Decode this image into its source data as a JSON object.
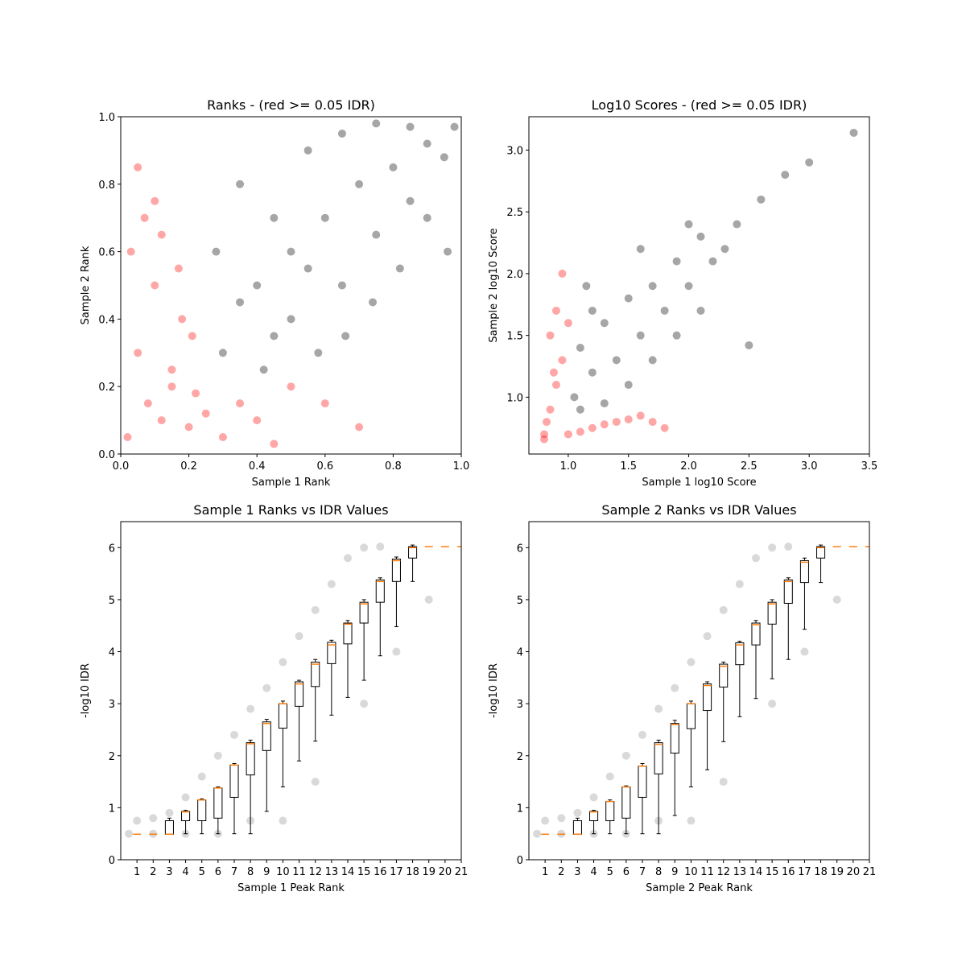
{
  "chart_data": [
    {
      "type": "scatter",
      "title": "Ranks - (red >= 0.05 IDR)",
      "x_label": "Sample 1 Rank",
      "y_label": "Sample 2 Rank",
      "xlim": [
        0,
        1
      ],
      "ylim": [
        0,
        1
      ],
      "xticks": [
        {
          "value": 0,
          "label": "0.0"
        },
        {
          "value": 0.2,
          "label": "0.2"
        },
        {
          "value": 0.4,
          "label": "0.4"
        },
        {
          "value": 0.6,
          "label": "0.6"
        },
        {
          "value": 0.8,
          "label": "0.8"
        },
        {
          "value": 1,
          "label": "1.0"
        }
      ],
      "yticks": [
        {
          "value": 0,
          "label": "0.0"
        },
        {
          "value": 0.2,
          "label": "0.2"
        },
        {
          "value": 0.4,
          "label": "0.4"
        },
        {
          "value": 0.6,
          "label": "0.6"
        },
        {
          "value": 0.8,
          "label": "0.8"
        },
        {
          "value": 1,
          "label": "1.0"
        }
      ],
      "series": [
        {
          "color": "#000000",
          "x": [
            0.3,
            0.35,
            0.4,
            0.45,
            0.5,
            0.55,
            0.6,
            0.65,
            0.7,
            0.75,
            0.8,
            0.85,
            0.9,
            0.95,
            0.98,
            0.28,
            0.35,
            0.42,
            0.5,
            0.58,
            0.66,
            0.74,
            0.82,
            0.9,
            0.96,
            0.45,
            0.55,
            0.65,
            0.75,
            0.85
          ],
          "y": [
            0.3,
            0.45,
            0.5,
            0.35,
            0.6,
            0.55,
            0.7,
            0.5,
            0.8,
            0.65,
            0.85,
            0.75,
            0.92,
            0.88,
            0.97,
            0.6,
            0.8,
            0.25,
            0.4,
            0.3,
            0.35,
            0.45,
            0.55,
            0.7,
            0.6,
            0.7,
            0.9,
            0.95,
            0.98,
            0.97
          ]
        },
        {
          "color": "#ff0000",
          "x": [
            0.02,
            0.05,
            0.08,
            0.1,
            0.12,
            0.15,
            0.18,
            0.2,
            0.22,
            0.25,
            0.3,
            0.35,
            0.4,
            0.45,
            0.5,
            0.03,
            0.07,
            0.12,
            0.17,
            0.21,
            0.6,
            0.7,
            0.05,
            0.1,
            0.15
          ],
          "y": [
            0.05,
            0.3,
            0.15,
            0.5,
            0.1,
            0.25,
            0.4,
            0.08,
            0.18,
            0.12,
            0.05,
            0.15,
            0.1,
            0.03,
            0.2,
            0.6,
            0.7,
            0.65,
            0.55,
            0.35,
            0.15,
            0.08,
            0.85,
            0.75,
            0.2
          ]
        }
      ]
    },
    {
      "type": "scatter",
      "title": "Log10 Scores - (red >= 0.05 IDR)",
      "x_label": "Sample 1 log10 Score",
      "y_label": "Sample 2 log10 Score",
      "xlim": [
        0.673,
        3.5
      ],
      "ylim": [
        0.54,
        3.27
      ],
      "xticks": [
        {
          "value": 1,
          "label": "1.0"
        },
        {
          "value": 1.5,
          "label": "1.5"
        },
        {
          "value": 2,
          "label": "2.0"
        },
        {
          "value": 2.5,
          "label": "2.5"
        },
        {
          "value": 3,
          "label": "3.0"
        },
        {
          "value": 3.5,
          "label": "3.5"
        }
      ],
      "yticks": [
        {
          "value": 1,
          "label": "1.0"
        },
        {
          "value": 1.5,
          "label": "1.5"
        },
        {
          "value": 2,
          "label": "2.0"
        },
        {
          "value": 2.5,
          "label": "2.5"
        },
        {
          "value": 3,
          "label": "3.0"
        }
      ],
      "series": [
        {
          "color": "#000000",
          "x": [
            1.05,
            1.1,
            1.2,
            1.3,
            1.4,
            1.5,
            1.6,
            1.7,
            1.8,
            1.9,
            2.0,
            2.1,
            2.2,
            2.3,
            1.1,
            1.2,
            1.3,
            1.5,
            1.7,
            1.9,
            2.1,
            2.4,
            2.6,
            2.8,
            3.0,
            3.37,
            1.15,
            1.6,
            2.0,
            2.5
          ],
          "y": [
            1.0,
            1.4,
            1.2,
            1.6,
            1.3,
            1.8,
            1.5,
            1.9,
            1.7,
            2.1,
            1.9,
            2.3,
            2.1,
            2.2,
            0.9,
            1.7,
            0.95,
            1.1,
            1.3,
            1.5,
            1.7,
            2.4,
            2.6,
            2.8,
            2.9,
            3.14,
            1.9,
            2.2,
            2.4,
            1.42
          ]
        },
        {
          "color": "#ff0000",
          "x": [
            0.8,
            0.82,
            0.85,
            0.9,
            0.95,
            1.0,
            1.1,
            1.2,
            1.3,
            1.4,
            1.5,
            1.6,
            1.7,
            1.8,
            0.85,
            0.9,
            0.95,
            1.0,
            0.8,
            0.88
          ],
          "y": [
            0.7,
            0.8,
            0.9,
            1.1,
            1.3,
            0.7,
            0.72,
            0.75,
            0.78,
            0.8,
            0.82,
            0.85,
            0.8,
            0.75,
            1.5,
            1.7,
            2.0,
            1.6,
            0.66,
            1.2
          ]
        }
      ]
    },
    {
      "type": "box",
      "title": "Sample 1 Ranks vs IDR Values",
      "x_label": "Sample 1 Peak Rank",
      "y_label": "-log10 IDR",
      "xlim": [
        0,
        21
      ],
      "ylim": [
        0,
        6.5
      ],
      "xticks": [
        1,
        2,
        3,
        4,
        5,
        6,
        7,
        8,
        9,
        10,
        11,
        12,
        13,
        14,
        15,
        16,
        17,
        18,
        19,
        20,
        21
      ],
      "yticks": [
        0,
        1,
        2,
        3,
        4,
        5,
        6
      ],
      "points": {
        "color": "#000000",
        "x": [
          1,
          2,
          3,
          4,
          5,
          6,
          7,
          8,
          9,
          10,
          11,
          12,
          13,
          14,
          15,
          16,
          8,
          10,
          12,
          15,
          17,
          19,
          0.5,
          2,
          4,
          6
        ],
        "y": [
          0.75,
          0.8,
          0.9,
          1.2,
          1.6,
          2.0,
          2.4,
          2.9,
          3.3,
          3.8,
          4.3,
          4.8,
          5.3,
          5.8,
          6.0,
          6.02,
          0.75,
          0.75,
          1.5,
          3.0,
          4.0,
          5.0,
          0.5,
          0.5,
          0.5,
          0.5
        ]
      },
      "boxes": {
        "positions": [
          1,
          2,
          3,
          4,
          5,
          6,
          7,
          8,
          9,
          10,
          11,
          12,
          13,
          14,
          15,
          16,
          17,
          18,
          19,
          20,
          21
        ],
        "q1": [
          0.49,
          0.49,
          0.49,
          0.75,
          0.75,
          0.8,
          1.2,
          1.63,
          2.1,
          2.53,
          2.95,
          3.33,
          3.77,
          4.15,
          4.55,
          4.95,
          5.35,
          5.8,
          6.02,
          6.02,
          6.02
        ],
        "median": [
          0.49,
          0.49,
          0.49,
          0.92,
          1.15,
          1.38,
          1.82,
          2.23,
          2.62,
          3.0,
          3.38,
          3.76,
          4.13,
          4.53,
          4.92,
          5.35,
          5.75,
          6.0,
          6.02,
          6.02,
          6.02
        ],
        "q3": [
          0.49,
          0.49,
          0.75,
          0.93,
          1.15,
          1.38,
          1.82,
          2.25,
          2.65,
          3.0,
          3.42,
          3.8,
          4.18,
          4.55,
          4.95,
          5.38,
          5.78,
          6.02,
          6.02,
          6.02,
          6.02
        ],
        "whislo": [
          0.49,
          0.49,
          0.49,
          0.5,
          0.5,
          0.5,
          0.5,
          0.5,
          0.93,
          1.4,
          1.9,
          2.28,
          2.78,
          3.12,
          3.45,
          3.92,
          4.48,
          5.35,
          6.02,
          6.02,
          6.02
        ],
        "whishi": [
          0.49,
          0.49,
          0.8,
          0.95,
          1.17,
          1.4,
          1.85,
          2.3,
          2.7,
          3.05,
          3.45,
          3.85,
          4.22,
          4.6,
          5.0,
          5.42,
          5.82,
          6.05,
          6.02,
          6.02,
          6.02
        ],
        "color": "#000000",
        "median_color": "#ff7f0e"
      }
    },
    {
      "type": "box",
      "title": "Sample 2 Ranks vs IDR Values",
      "x_label": "Sample 2 Peak Rank",
      "y_label": "-log10 IDR",
      "xlim": [
        0,
        21
      ],
      "ylim": [
        0,
        6.5
      ],
      "xticks": [
        1,
        2,
        3,
        4,
        5,
        6,
        7,
        8,
        9,
        10,
        11,
        12,
        13,
        14,
        15,
        16,
        17,
        18,
        19,
        20,
        21
      ],
      "yticks": [
        0,
        1,
        2,
        3,
        4,
        5,
        6
      ],
      "points": {
        "color": "#000000",
        "x": [
          1,
          2,
          3,
          4,
          5,
          6,
          7,
          8,
          9,
          10,
          11,
          12,
          13,
          14,
          15,
          16,
          8,
          10,
          12,
          15,
          17,
          19,
          0.5,
          2,
          4,
          6
        ],
        "y": [
          0.75,
          0.8,
          0.9,
          1.2,
          1.6,
          2.0,
          2.4,
          2.9,
          3.3,
          3.8,
          4.3,
          4.8,
          5.3,
          5.8,
          6.0,
          6.02,
          0.75,
          0.75,
          1.5,
          3.0,
          4.0,
          5.0,
          0.5,
          0.5,
          0.5,
          0.5
        ]
      },
      "boxes": {
        "positions": [
          1,
          2,
          3,
          4,
          5,
          6,
          7,
          8,
          9,
          10,
          11,
          12,
          13,
          14,
          15,
          16,
          17,
          18,
          19,
          20,
          21
        ],
        "q1": [
          0.49,
          0.49,
          0.49,
          0.75,
          0.75,
          0.8,
          1.2,
          1.65,
          2.05,
          2.52,
          2.87,
          3.32,
          3.75,
          4.13,
          4.53,
          4.93,
          5.33,
          5.8,
          6.02,
          6.02,
          6.02
        ],
        "median": [
          0.49,
          0.49,
          0.49,
          0.92,
          1.12,
          1.4,
          1.8,
          2.22,
          2.6,
          3.0,
          3.35,
          3.72,
          4.13,
          4.52,
          4.92,
          5.35,
          5.72,
          6.0,
          6.02,
          6.02,
          6.02
        ],
        "q3": [
          0.49,
          0.49,
          0.75,
          0.93,
          1.12,
          1.4,
          1.8,
          2.25,
          2.62,
          3.0,
          3.38,
          3.76,
          4.17,
          4.55,
          4.95,
          5.38,
          5.75,
          6.02,
          6.02,
          6.02,
          6.02
        ],
        "whislo": [
          0.49,
          0.49,
          0.49,
          0.5,
          0.5,
          0.5,
          0.5,
          0.5,
          0.85,
          1.4,
          1.73,
          2.27,
          2.75,
          3.1,
          3.48,
          3.85,
          4.43,
          5.33,
          6.02,
          6.02,
          6.02
        ],
        "whishi": [
          0.49,
          0.49,
          0.8,
          0.95,
          1.15,
          1.42,
          1.85,
          2.3,
          2.68,
          3.05,
          3.42,
          3.8,
          4.2,
          4.6,
          5.0,
          5.42,
          5.8,
          6.05,
          6.02,
          6.02,
          6.02
        ],
        "color": "#000000",
        "median_color": "#ff7f0e"
      }
    }
  ]
}
